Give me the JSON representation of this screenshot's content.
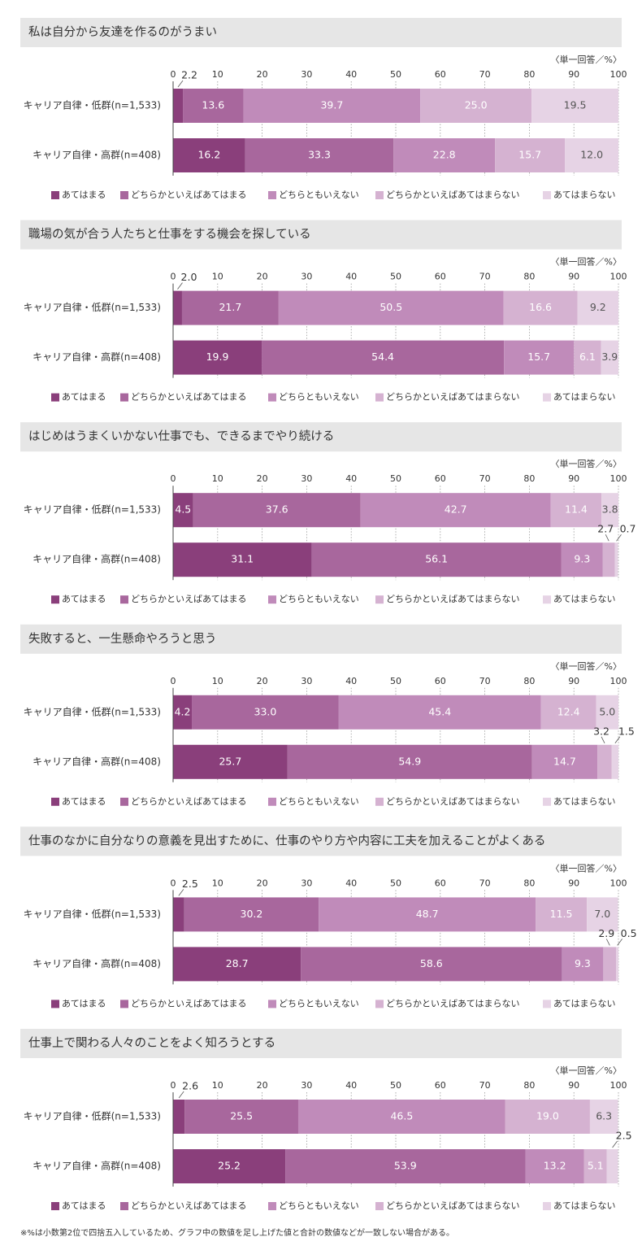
{
  "chart_data": [
    {
      "type": "stacked-bar-h",
      "title": "私は自分から友達を作るのがうまい",
      "unit_note": "〈単一回答／%〉",
      "categories": [
        "キャリア自律・低群(n=1,533)",
        "キャリア自律・高群(n=408)"
      ],
      "xlim": [
        0,
        100
      ],
      "xticks": [
        0,
        10,
        20,
        30,
        40,
        50,
        60,
        70,
        80,
        90,
        100
      ],
      "grid": true,
      "series": [
        {
          "name": "あてはまる",
          "color": "#8a3f7b",
          "values": [
            2.2,
            16.2
          ],
          "value_labels": [
            "2.2",
            "16.2"
          ]
        },
        {
          "name": "どちらかといえばあてはまる",
          "color": "#a8679d",
          "values": [
            13.6,
            33.3
          ],
          "value_labels": [
            "13.6",
            "33.3"
          ]
        },
        {
          "name": "どちらともいえない",
          "color": "#c08bba",
          "values": [
            39.7,
            22.8
          ],
          "value_labels": [
            "39.7",
            "22.8"
          ]
        },
        {
          "name": "どちらかといえばあてはまらない",
          "color": "#d5b2d1",
          "values": [
            25.0,
            15.7
          ],
          "value_labels": [
            "25.0",
            "15.7"
          ]
        },
        {
          "name": "あてはまらない",
          "color": "#e6d3e5",
          "values": [
            19.5,
            12.0
          ],
          "value_labels": [
            "19.5",
            "12.0"
          ]
        }
      ]
    },
    {
      "type": "stacked-bar-h",
      "title": "職場の気が合う人たちと仕事をする機会を探している",
      "unit_note": "〈単一回答／%〉",
      "categories": [
        "キャリア自律・低群(n=1,533)",
        "キャリア自律・高群(n=408)"
      ],
      "xlim": [
        0,
        100
      ],
      "xticks": [
        0,
        10,
        20,
        30,
        40,
        50,
        60,
        70,
        80,
        90,
        100
      ],
      "grid": true,
      "series": [
        {
          "name": "あてはまる",
          "color": "#8a3f7b",
          "values": [
            2.0,
            19.9
          ],
          "value_labels": [
            "2.0",
            "19.9"
          ]
        },
        {
          "name": "どちらかといえばあてはまる",
          "color": "#a8679d",
          "values": [
            21.7,
            54.4
          ],
          "value_labels": [
            "21.7",
            "54.4"
          ]
        },
        {
          "name": "どちらともいえない",
          "color": "#c08bba",
          "values": [
            50.5,
            15.7
          ],
          "value_labels": [
            "50.5",
            "15.7"
          ]
        },
        {
          "name": "どちらかといえばあてはまらない",
          "color": "#d5b2d1",
          "values": [
            16.6,
            6.1
          ],
          "value_labels": [
            "16.6",
            "6.1"
          ]
        },
        {
          "name": "あてはまらない",
          "color": "#e6d3e5",
          "values": [
            9.2,
            3.9
          ],
          "value_labels": [
            "9.2",
            "3.9"
          ]
        }
      ]
    },
    {
      "type": "stacked-bar-h",
      "title": "はじめはうまくいかない仕事でも、できるまでやり続ける",
      "unit_note": "〈単一回答／%〉",
      "categories": [
        "キャリア自律・低群(n=1,533)",
        "キャリア自律・高群(n=408)"
      ],
      "xlim": [
        0,
        100
      ],
      "xticks": [
        0,
        10,
        20,
        30,
        40,
        50,
        60,
        70,
        80,
        90,
        100
      ],
      "grid": true,
      "series": [
        {
          "name": "あてはまる",
          "color": "#8a3f7b",
          "values": [
            4.5,
            31.1
          ],
          "value_labels": [
            "4.5",
            "31.1"
          ]
        },
        {
          "name": "どちらかといえばあてはまる",
          "color": "#a8679d",
          "values": [
            37.6,
            56.1
          ],
          "value_labels": [
            "37.6",
            "56.1"
          ]
        },
        {
          "name": "どちらともいえない",
          "color": "#c08bba",
          "values": [
            42.7,
            9.3
          ],
          "value_labels": [
            "42.7",
            "9.3"
          ]
        },
        {
          "name": "どちらかといえばあてはまらない",
          "color": "#d5b2d1",
          "values": [
            11.4,
            2.7
          ],
          "value_labels": [
            "11.4",
            "2.7"
          ]
        },
        {
          "name": "あてはまらない",
          "color": "#e6d3e5",
          "values": [
            3.8,
            0.7
          ],
          "value_labels": [
            "3.8",
            "0.7"
          ]
        }
      ]
    },
    {
      "type": "stacked-bar-h",
      "title": "失敗すると、一生懸命やろうと思う",
      "unit_note": "〈単一回答／%〉",
      "categories": [
        "キャリア自律・低群(n=1,533)",
        "キャリア自律・高群(n=408)"
      ],
      "xlim": [
        0,
        100
      ],
      "xticks": [
        0,
        10,
        20,
        30,
        40,
        50,
        60,
        70,
        80,
        90,
        100
      ],
      "grid": true,
      "series": [
        {
          "name": "あてはまる",
          "color": "#8a3f7b",
          "values": [
            4.2,
            25.7
          ],
          "value_labels": [
            "4.2",
            "25.7"
          ]
        },
        {
          "name": "どちらかといえばあてはまる",
          "color": "#a8679d",
          "values": [
            33.0,
            54.9
          ],
          "value_labels": [
            "33.0",
            "54.9"
          ]
        },
        {
          "name": "どちらともいえない",
          "color": "#c08bba",
          "values": [
            45.4,
            14.7
          ],
          "value_labels": [
            "45.4",
            "14.7"
          ]
        },
        {
          "name": "どちらかといえばあてはまらない",
          "color": "#d5b2d1",
          "values": [
            12.4,
            3.2
          ],
          "value_labels": [
            "12.4",
            "3.2"
          ]
        },
        {
          "name": "あてはまらない",
          "color": "#e6d3e5",
          "values": [
            5.0,
            1.5
          ],
          "value_labels": [
            "5.0",
            "1.5"
          ]
        }
      ]
    },
    {
      "type": "stacked-bar-h",
      "title": "仕事のなかに自分なりの意義を見出すために、仕事のやり方や内容に工夫を加えることがよくある",
      "unit_note": "〈単一回答／%〉",
      "categories": [
        "キャリア自律・低群(n=1,533)",
        "キャリア自律・高群(n=408)"
      ],
      "xlim": [
        0,
        100
      ],
      "xticks": [
        0,
        10,
        20,
        30,
        40,
        50,
        60,
        70,
        80,
        90,
        100
      ],
      "grid": true,
      "series": [
        {
          "name": "あてはまる",
          "color": "#8a3f7b",
          "values": [
            2.5,
            28.7
          ],
          "value_labels": [
            "2.5",
            "28.7"
          ]
        },
        {
          "name": "どちらかといえばあてはまる",
          "color": "#a8679d",
          "values": [
            30.2,
            58.6
          ],
          "value_labels": [
            "30.2",
            "58.6"
          ]
        },
        {
          "name": "どちらともいえない",
          "color": "#c08bba",
          "values": [
            48.7,
            9.3
          ],
          "value_labels": [
            "48.7",
            "9.3"
          ]
        },
        {
          "name": "どちらかといえばあてはまらない",
          "color": "#d5b2d1",
          "values": [
            11.5,
            2.9
          ],
          "value_labels": [
            "11.5",
            "2.9"
          ]
        },
        {
          "name": "あてはまらない",
          "color": "#e6d3e5",
          "values": [
            7.0,
            0.5
          ],
          "value_labels": [
            "7.0",
            "0.5"
          ]
        }
      ]
    },
    {
      "type": "stacked-bar-h",
      "title": "仕事上で関わる人々のことをよく知ろうとする",
      "unit_note": "〈単一回答／%〉",
      "categories": [
        "キャリア自律・低群(n=1,533)",
        "キャリア自律・高群(n=408)"
      ],
      "xlim": [
        0,
        100
      ],
      "xticks": [
        0,
        10,
        20,
        30,
        40,
        50,
        60,
        70,
        80,
        90,
        100
      ],
      "grid": true,
      "series": [
        {
          "name": "あてはまる",
          "color": "#8a3f7b",
          "values": [
            2.6,
            25.2
          ],
          "value_labels": [
            "2.6",
            "25.2"
          ]
        },
        {
          "name": "どちらかといえばあてはまる",
          "color": "#a8679d",
          "values": [
            25.5,
            53.9
          ],
          "value_labels": [
            "25.5",
            "53.9"
          ]
        },
        {
          "name": "どちらともいえない",
          "color": "#c08bba",
          "values": [
            46.5,
            13.2
          ],
          "value_labels": [
            "46.5",
            "13.2"
          ]
        },
        {
          "name": "どちらかといえばあてはまらない",
          "color": "#d5b2d1",
          "values": [
            19.0,
            5.1
          ],
          "value_labels": [
            "19.0",
            "5.1"
          ]
        },
        {
          "name": "あてはまらない",
          "color": "#e6d3e5",
          "values": [
            6.3,
            2.5
          ],
          "value_labels": [
            "6.3",
            "2.5"
          ]
        }
      ]
    }
  ],
  "footnote": "※%は小数第2位で四捨五入しているため、グラフ中の数値を足し上げた値と合計の数値などが一致しない場合がある。"
}
